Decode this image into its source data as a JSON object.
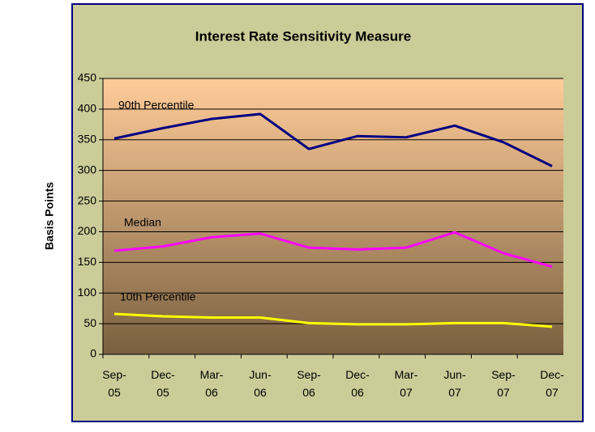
{
  "chart_data": {
    "type": "line",
    "title": "Interest Rate Sensitivity Measure",
    "y_label": "Basis Points",
    "categories": [
      "Sep-05",
      "Dec-05",
      "Mar-06",
      "Jun-06",
      "Sep-06",
      "Dec-06",
      "Mar-07",
      "Jun-07",
      "Sep-07",
      "Dec-07"
    ],
    "series": [
      {
        "name": "90th Percentile",
        "color": "#000080",
        "values": [
          352,
          369,
          384,
          392,
          335,
          356,
          354,
          373,
          346,
          307
        ]
      },
      {
        "name": "Median",
        "color": "#ff00ff",
        "values": [
          169,
          176,
          191,
          197,
          174,
          171,
          174,
          199,
          165,
          143
        ]
      },
      {
        "name": "10th Percentile",
        "color": "#ffff00",
        "values": [
          66,
          62,
          60,
          60,
          51,
          49,
          49,
          51,
          51,
          45
        ]
      }
    ],
    "ylim": [
      0,
      450
    ],
    "yticks": [
      0,
      50,
      100,
      150,
      200,
      250,
      300,
      350,
      400,
      450
    ],
    "grid": true
  }
}
